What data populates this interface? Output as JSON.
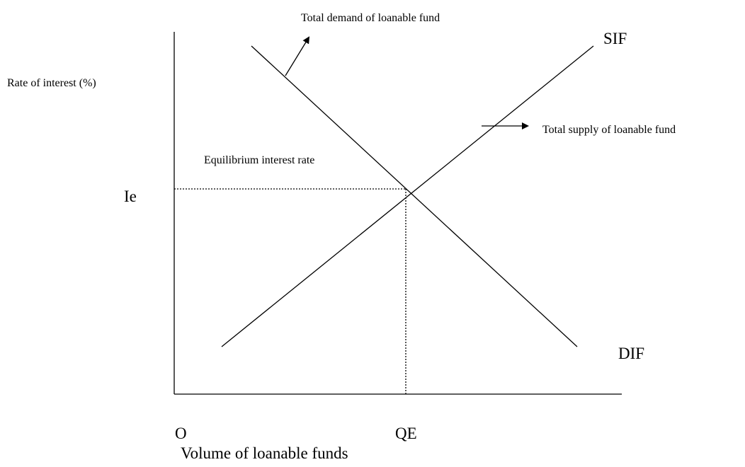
{
  "diagram": {
    "y_axis_label": "Rate of interest (%)",
    "x_axis_label": "Volume of loanable funds",
    "origin_label": "O",
    "equilibrium_rate_label": "Ie",
    "equilibrium_quantity_label": "QE",
    "supply_curve_label": "SIF",
    "demand_curve_label": "DIF",
    "demand_annotation": "Total demand of loanable fund",
    "supply_annotation": "Total supply of loanable fund",
    "equilibrium_annotation": "Equilibrium interest rate"
  }
}
